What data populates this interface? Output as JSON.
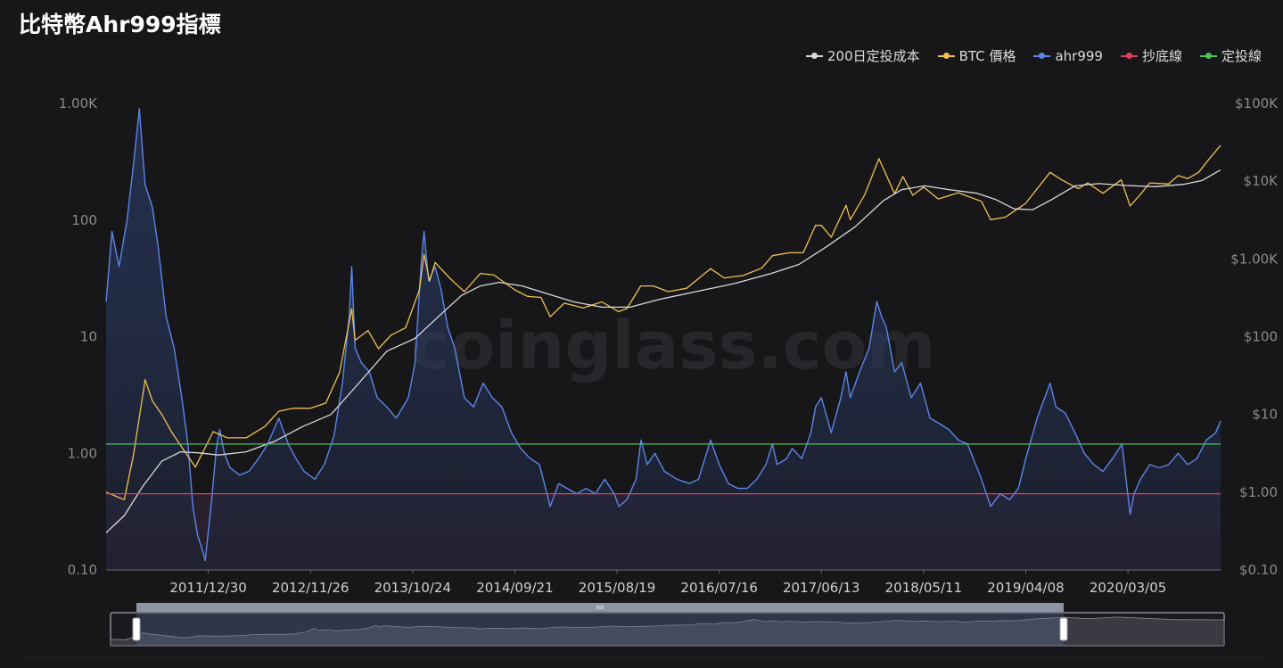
{
  "title": "比特幣Ahr999指標",
  "watermark": "coinglass.com",
  "legend": [
    {
      "label": "200日定投成本",
      "color": "#d9d9d9"
    },
    {
      "label": "BTC 價格",
      "color": "#f0c050"
    },
    {
      "label": "ahr999",
      "color": "#5b86e8"
    },
    {
      "label": "抄底線",
      "color": "#e2405f"
    },
    {
      "label": "定投線",
      "color": "#4cc35a"
    }
  ],
  "chart_data": {
    "type": "line",
    "x_tick_labels": [
      "2011/12/30",
      "2012/11/26",
      "2013/10/24",
      "2014/09/21",
      "2015/08/19",
      "2016/07/16",
      "2017/06/13",
      "2018/05/11",
      "2019/04/08",
      "2020/03/05"
    ],
    "x_range": [
      "2011/02/01",
      "2020/12/31"
    ],
    "y_left": {
      "scale": "log",
      "range": [
        0.1,
        1000
      ],
      "tick_labels": [
        "0.10",
        "1.00",
        "10",
        "100",
        "1.00K"
      ]
    },
    "y_right": {
      "scale": "log",
      "range": [
        0.1,
        100000
      ],
      "tick_labels": [
        "$0.10",
        "$1.00",
        "$10",
        "$100",
        "$1.00K",
        "$10K",
        "$100K"
      ]
    },
    "thresholds": [
      {
        "name": "定投線",
        "value": 1.2
      },
      {
        "name": "抄底線",
        "value": 0.45
      }
    ],
    "series": [
      {
        "name": "ahr999",
        "axis": "left",
        "points": [
          [
            "2011/02/01",
            20
          ],
          [
            "2011/02/20",
            80
          ],
          [
            "2011/03/15",
            40
          ],
          [
            "2011/04/10",
            100
          ],
          [
            "2011/05/01",
            300
          ],
          [
            "2011/05/20",
            900
          ],
          [
            "2011/06/08",
            200
          ],
          [
            "2011/07/01",
            130
          ],
          [
            "2011/07/20",
            60
          ],
          [
            "2011/08/15",
            15
          ],
          [
            "2011/09/10",
            8
          ],
          [
            "2011/10/05",
            3
          ],
          [
            "2011/10/25",
            1.2
          ],
          [
            "2011/11/10",
            0.35
          ],
          [
            "2011/11/25",
            0.2
          ],
          [
            "2011/12/10",
            0.15
          ],
          [
            "2011/12/20",
            0.12
          ],
          [
            "2012/01/10",
            0.4
          ],
          [
            "2012/01/25",
            1.1
          ],
          [
            "2012/02/05",
            1.6
          ],
          [
            "2012/02/20",
            1.0
          ],
          [
            "2012/03/10",
            0.75
          ],
          [
            "2012/04/10",
            0.65
          ],
          [
            "2012/05/10",
            0.7
          ],
          [
            "2012/06/10",
            0.9
          ],
          [
            "2012/07/10",
            1.2
          ],
          [
            "2012/08/15",
            2.0
          ],
          [
            "2012/09/15",
            1.2
          ],
          [
            "2012/10/10",
            0.9
          ],
          [
            "2012/11/05",
            0.7
          ],
          [
            "2012/12/10",
            0.6
          ],
          [
            "2013/01/10",
            0.8
          ],
          [
            "2013/02/10",
            1.4
          ],
          [
            "2013/03/10",
            4
          ],
          [
            "2013/04/01",
            15
          ],
          [
            "2013/04/09",
            40
          ],
          [
            "2013/04/20",
            8
          ],
          [
            "2013/05/10",
            6
          ],
          [
            "2013/06/05",
            5
          ],
          [
            "2013/07/01",
            3
          ],
          [
            "2013/08/01",
            2.5
          ],
          [
            "2013/09/01",
            2.0
          ],
          [
            "2013/10/10",
            3
          ],
          [
            "2013/11/01",
            6
          ],
          [
            "2013/11/20",
            40
          ],
          [
            "2013/11/30",
            80
          ],
          [
            "2013/12/15",
            30
          ],
          [
            "2014/01/05",
            40
          ],
          [
            "2014/01/25",
            25
          ],
          [
            "2014/02/15",
            12
          ],
          [
            "2014/03/10",
            8
          ],
          [
            "2014/04/10",
            3
          ],
          [
            "2014/05/10",
            2.5
          ],
          [
            "2014/06/10",
            4
          ],
          [
            "2014/07/10",
            3
          ],
          [
            "2014/08/10",
            2.5
          ],
          [
            "2014/09/10",
            1.5
          ],
          [
            "2014/10/10",
            1.1
          ],
          [
            "2014/11/10",
            0.9
          ],
          [
            "2014/12/10",
            0.8
          ],
          [
            "2015/01/14",
            0.35
          ],
          [
            "2015/02/10",
            0.55
          ],
          [
            "2015/03/10",
            0.5
          ],
          [
            "2015/04/10",
            0.45
          ],
          [
            "2015/05/10",
            0.5
          ],
          [
            "2015/06/10",
            0.45
          ],
          [
            "2015/07/10",
            0.6
          ],
          [
            "2015/08/10",
            0.45
          ],
          [
            "2015/08/25",
            0.35
          ],
          [
            "2015/09/20",
            0.4
          ],
          [
            "2015/10/20",
            0.6
          ],
          [
            "2015/11/05",
            1.3
          ],
          [
            "2015/11/25",
            0.8
          ],
          [
            "2015/12/20",
            1.0
          ],
          [
            "2016/01/20",
            0.7
          ],
          [
            "2016/03/01",
            0.6
          ],
          [
            "2016/04/10",
            0.55
          ],
          [
            "2016/05/10",
            0.6
          ],
          [
            "2016/06/18",
            1.3
          ],
          [
            "2016/07/16",
            0.8
          ],
          [
            "2016/08/15",
            0.55
          ],
          [
            "2016/09/15",
            0.5
          ],
          [
            "2016/10/15",
            0.5
          ],
          [
            "2016/11/15",
            0.6
          ],
          [
            "2016/12/15",
            0.8
          ],
          [
            "2017/01/05",
            1.2
          ],
          [
            "2017/01/20",
            0.8
          ],
          [
            "2017/02/20",
            0.9
          ],
          [
            "2017/03/10",
            1.1
          ],
          [
            "2017/04/10",
            0.9
          ],
          [
            "2017/05/10",
            1.5
          ],
          [
            "2017/05/25",
            2.5
          ],
          [
            "2017/06/13",
            3
          ],
          [
            "2017/07/15",
            1.5
          ],
          [
            "2017/08/15",
            3
          ],
          [
            "2017/09/01",
            5
          ],
          [
            "2017/09/15",
            3
          ],
          [
            "2017/10/15",
            5
          ],
          [
            "2017/11/15",
            8
          ],
          [
            "2017/12/10",
            20
          ],
          [
            "2017/12/25",
            15
          ],
          [
            "2018/01/10",
            12
          ],
          [
            "2018/02/06",
            5
          ],
          [
            "2018/03/01",
            6
          ],
          [
            "2018/04/01",
            3
          ],
          [
            "2018/05/01",
            4
          ],
          [
            "2018/06/01",
            2
          ],
          [
            "2018/07/01",
            1.8
          ],
          [
            "2018/08/01",
            1.6
          ],
          [
            "2018/09/01",
            1.3
          ],
          [
            "2018/10/01",
            1.2
          ],
          [
            "2018/11/15",
            0.6
          ],
          [
            "2018/12/15",
            0.35
          ],
          [
            "2019/01/15",
            0.45
          ],
          [
            "2019/02/15",
            0.4
          ],
          [
            "2019/03/15",
            0.5
          ],
          [
            "2019/04/08",
            0.9
          ],
          [
            "2019/05/15",
            2
          ],
          [
            "2019/06/26",
            4
          ],
          [
            "2019/07/15",
            2.5
          ],
          [
            "2019/08/15",
            2.2
          ],
          [
            "2019/09/15",
            1.5
          ],
          [
            "2019/10/15",
            1.0
          ],
          [
            "2019/11/15",
            0.8
          ],
          [
            "2019/12/15",
            0.7
          ],
          [
            "2020/01/15",
            0.9
          ],
          [
            "2020/02/15",
            1.2
          ],
          [
            "2020/03/12",
            0.3
          ],
          [
            "2020/03/25",
            0.45
          ],
          [
            "2020/04/15",
            0.6
          ],
          [
            "2020/05/15",
            0.8
          ],
          [
            "2020/06/15",
            0.75
          ],
          [
            "2020/07/15",
            0.8
          ],
          [
            "2020/08/15",
            1.0
          ],
          [
            "2020/09/15",
            0.8
          ],
          [
            "2020/10/15",
            0.9
          ],
          [
            "2020/11/15",
            1.3
          ],
          [
            "2020/12/15",
            1.5
          ],
          [
            "2020/12/31",
            1.9
          ]
        ]
      },
      {
        "name": "BTC 價格",
        "axis": "right",
        "points": [
          [
            "2011/02/01",
            1.0
          ],
          [
            "2011/04/01",
            0.8
          ],
          [
            "2011/05/01",
            3
          ],
          [
            "2011/06/08",
            28
          ],
          [
            "2011/07/01",
            15
          ],
          [
            "2011/08/01",
            10
          ],
          [
            "2011/09/01",
            6
          ],
          [
            "2011/10/01",
            4
          ],
          [
            "2011/11/18",
            2.1
          ],
          [
            "2011/12/30",
            4.5
          ],
          [
            "2012/01/15",
            6
          ],
          [
            "2012/03/01",
            5
          ],
          [
            "2012/05/01",
            5
          ],
          [
            "2012/07/01",
            7
          ],
          [
            "2012/08/15",
            11
          ],
          [
            "2012/10/01",
            12
          ],
          [
            "2012/11/26",
            12
          ],
          [
            "2013/01/15",
            14
          ],
          [
            "2013/03/01",
            35
          ],
          [
            "2013/04/09",
            230
          ],
          [
            "2013/04/20",
            90
          ],
          [
            "2013/06/01",
            120
          ],
          [
            "2013/07/05",
            70
          ],
          [
            "2013/08/15",
            105
          ],
          [
            "2013/10/01",
            130
          ],
          [
            "2013/11/15",
            400
          ],
          [
            "2013/11/30",
            1150
          ],
          [
            "2013/12/18",
            520
          ],
          [
            "2014/01/05",
            900
          ],
          [
            "2014/02/25",
            550
          ],
          [
            "2014/04/10",
            380
          ],
          [
            "2014/06/01",
            650
          ],
          [
            "2014/07/15",
            620
          ],
          [
            "2014/09/21",
            400
          ],
          [
            "2014/11/01",
            330
          ],
          [
            "2014/12/15",
            320
          ],
          [
            "2015/01/14",
            180
          ],
          [
            "2015/03/01",
            270
          ],
          [
            "2015/05/01",
            235
          ],
          [
            "2015/07/01",
            280
          ],
          [
            "2015/08/24",
            210
          ],
          [
            "2015/09/20",
            230
          ],
          [
            "2015/11/04",
            450
          ],
          [
            "2015/12/15",
            450
          ],
          [
            "2016/02/01",
            380
          ],
          [
            "2016/04/01",
            420
          ],
          [
            "2016/06/18",
            750
          ],
          [
            "2016/08/01",
            570
          ],
          [
            "2016/10/01",
            610
          ],
          [
            "2016/12/01",
            760
          ],
          [
            "2017/01/05",
            1100
          ],
          [
            "2017/03/01",
            1200
          ],
          [
            "2017/04/15",
            1200
          ],
          [
            "2017/05/25",
            2700
          ],
          [
            "2017/06/13",
            2700
          ],
          [
            "2017/07/15",
            1900
          ],
          [
            "2017/09/01",
            4900
          ],
          [
            "2017/09/15",
            3200
          ],
          [
            "2017/11/01",
            6700
          ],
          [
            "2017/12/17",
            19500
          ],
          [
            "2018/02/06",
            6900
          ],
          [
            "2018/03/05",
            11500
          ],
          [
            "2018/04/06",
            6600
          ],
          [
            "2018/05/11",
            8400
          ],
          [
            "2018/06/28",
            5900
          ],
          [
            "2018/09/01",
            7100
          ],
          [
            "2018/11/15",
            5500
          ],
          [
            "2018/12/15",
            3200
          ],
          [
            "2019/02/01",
            3450
          ],
          [
            "2019/04/08",
            5200
          ],
          [
            "2019/06/26",
            13000
          ],
          [
            "2019/08/01",
            10500
          ],
          [
            "2019/09/25",
            8000
          ],
          [
            "2019/10/26",
            9500
          ],
          [
            "2019/12/15",
            7000
          ],
          [
            "2020/02/12",
            10400
          ],
          [
            "2020/03/12",
            4800
          ],
          [
            "2020/04/15",
            6800
          ],
          [
            "2020/05/15",
            9500
          ],
          [
            "2020/07/15",
            9200
          ],
          [
            "2020/08/15",
            11800
          ],
          [
            "2020/09/15",
            10800
          ],
          [
            "2020/10/21",
            13000
          ],
          [
            "2020/11/20",
            18500
          ],
          [
            "2020/12/31",
            29000
          ]
        ]
      },
      {
        "name": "200日定投成本",
        "axis": "right",
        "points": [
          [
            "2011/02/01",
            0.3
          ],
          [
            "2011/04/01",
            0.5
          ],
          [
            "2011/06/01",
            1.2
          ],
          [
            "2011/08/01",
            2.5
          ],
          [
            "2011/10/01",
            3.3
          ],
          [
            "2011/12/01",
            3.2
          ],
          [
            "2012/02/01",
            3.0
          ],
          [
            "2012/05/01",
            3.3
          ],
          [
            "2012/08/01",
            4.5
          ],
          [
            "2012/11/01",
            7
          ],
          [
            "2013/02/01",
            10
          ],
          [
            "2013/05/01",
            25
          ],
          [
            "2013/08/01",
            65
          ],
          [
            "2013/11/01",
            95
          ],
          [
            "2014/01/15",
            180
          ],
          [
            "2014/04/01",
            340
          ],
          [
            "2014/06/01",
            450
          ],
          [
            "2014/08/01",
            500
          ],
          [
            "2014/10/15",
            450
          ],
          [
            "2015/01/01",
            360
          ],
          [
            "2015/04/01",
            280
          ],
          [
            "2015/07/01",
            240
          ],
          [
            "2015/10/01",
            240
          ],
          [
            "2016/01/01",
            300
          ],
          [
            "2016/05/01",
            380
          ],
          [
            "2016/09/01",
            480
          ],
          [
            "2017/01/01",
            650
          ],
          [
            "2017/04/01",
            850
          ],
          [
            "2017/07/01",
            1450
          ],
          [
            "2017/10/01",
            2600
          ],
          [
            "2017/12/31",
            5600
          ],
          [
            "2018/03/01",
            7800
          ],
          [
            "2018/05/15",
            8700
          ],
          [
            "2018/08/01",
            7800
          ],
          [
            "2018/11/01",
            7000
          ],
          [
            "2019/01/01",
            5800
          ],
          [
            "2019/03/01",
            4400
          ],
          [
            "2019/05/01",
            4300
          ],
          [
            "2019/07/01",
            5800
          ],
          [
            "2019/09/15",
            8700
          ],
          [
            "2019/12/01",
            9300
          ],
          [
            "2020/03/01",
            8800
          ],
          [
            "2020/06/01",
            8500
          ],
          [
            "2020/09/01",
            9100
          ],
          [
            "2020/11/01",
            10200
          ],
          [
            "2020/12/31",
            14000
          ]
        ]
      }
    ]
  }
}
